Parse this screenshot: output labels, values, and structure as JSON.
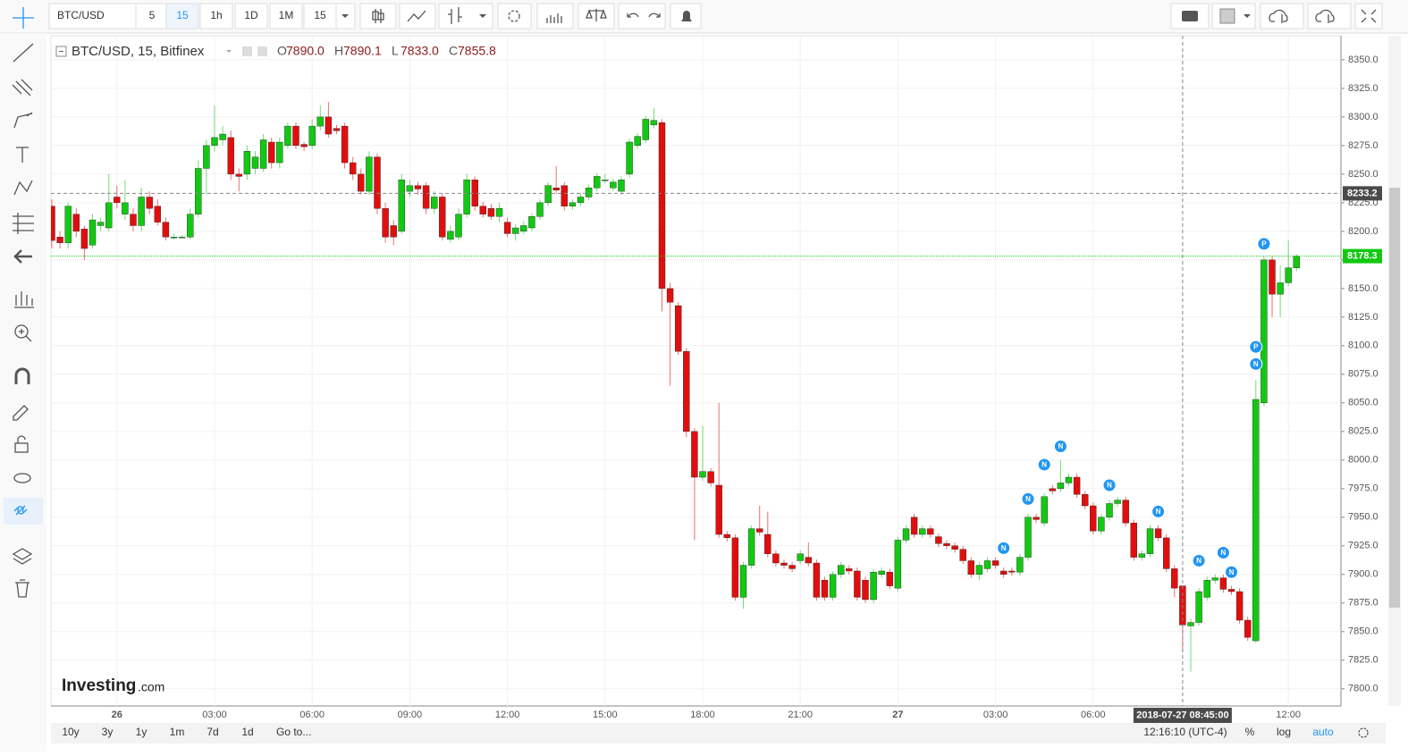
{
  "toolbar": {
    "symbol": "BTC/USD",
    "intervals": [
      "5",
      "15",
      "1h",
      "1D",
      "1M",
      "15"
    ]
  },
  "legend": {
    "title": "BTC/USD, 15, Bitfinex",
    "ohlc": [
      {
        "label": "O",
        "value": "7890.0"
      },
      {
        "label": "H",
        "value": "7890.1"
      },
      {
        "label": "L",
        "value": "7833.0"
      },
      {
        "label": "C",
        "value": "7855.8"
      }
    ]
  },
  "chart_data": {
    "type": "candlestick",
    "up_color": "#12c912",
    "down_color": "#e20e0e",
    "categories": [
      null,
      null,
      null,
      null,
      null,
      null,
      null,
      null,
      "26",
      null,
      null,
      null,
      null,
      null,
      null,
      null,
      null,
      null,
      null,
      null,
      "03:00",
      null,
      null,
      null,
      null,
      null,
      null,
      null,
      null,
      null,
      null,
      null,
      "06:00",
      null,
      null,
      null,
      null,
      null,
      null,
      null,
      null,
      null,
      null,
      null,
      "09:00",
      null,
      null,
      null,
      null,
      null,
      null,
      null,
      null,
      null,
      null,
      null,
      "12:00",
      null,
      null,
      null,
      null,
      null,
      null,
      null,
      null,
      null,
      null,
      null,
      "15:00",
      null,
      null,
      null,
      null,
      null,
      null,
      null,
      null,
      null,
      null,
      null,
      "18:00",
      null,
      null,
      null,
      null,
      null,
      null,
      null,
      null,
      null,
      null,
      null,
      "21:00",
      null,
      null,
      null,
      null,
      null,
      null,
      null,
      null,
      null,
      null,
      null,
      "27",
      null,
      null,
      null,
      null,
      null,
      null,
      null,
      null,
      null,
      null,
      null,
      "03:00",
      null,
      null,
      null,
      null,
      null,
      null,
      null,
      null,
      null,
      null,
      null,
      "06:00",
      null,
      null,
      null,
      null,
      null,
      null,
      null,
      null,
      null,
      null,
      null,
      null,
      null,
      null,
      null,
      null,
      null,
      null,
      null,
      null,
      null,
      null,
      null,
      "12:00",
      null
    ],
    "open": [
      8222,
      8195,
      8190,
      8215,
      8202,
      8188,
      8205,
      8203,
      8230,
      8215,
      8215,
      8205,
      8230,
      8222,
      8208,
      8195,
      8195,
      8195,
      8215,
      8255,
      8275,
      8280,
      8282,
      8250,
      8250,
      8255,
      8255,
      8278,
      8260,
      8275,
      8292,
      8276,
      8275,
      8292,
      8300,
      8290,
      8292,
      8260,
      8250,
      8235,
      8265,
      8220,
      8205,
      8200,
      8235,
      8240,
      8240,
      8220,
      8230,
      8193,
      8195,
      8215,
      8245,
      8222,
      8220,
      8213,
      8208,
      8198,
      8200,
      8203,
      8213,
      8225,
      8238,
      8240,
      8222,
      8225,
      8230,
      8238,
      8245,
      8238,
      8235,
      8250,
      8275,
      8280,
      8293,
      8295,
      8150,
      8135,
      8095,
      8025,
      7985,
      7990,
      7978,
      7935,
      7932,
      7880,
      7908,
      7940,
      7935,
      7918,
      7910,
      7908,
      7912,
      7915,
      7910,
      7895,
      7880,
      7900,
      7905,
      7903,
      7895,
      7878,
      7900,
      7902,
      7888,
      7930,
      7950,
      7935,
      7940,
      7933,
      7927,
      7925,
      7922,
      7912,
      7900,
      7905,
      7912,
      7903,
      7903,
      7902,
      7915,
      7950,
      7945,
      7975,
      7975,
      7980,
      7985,
      7970,
      7960,
      7938,
      7950,
      7962,
      7965,
      7945,
      7915,
      7918,
      7940,
      7932,
      7905,
      7890,
      7855,
      7858,
      7880,
      7895,
      7897,
      7887,
      7885,
      7860,
      7842,
      8050,
      8175,
      8145,
      8155,
      8168
    ],
    "high": [
      8228,
      8200,
      8225,
      8220,
      8205,
      8215,
      8212,
      8250,
      8240,
      8245,
      8220,
      8238,
      8235,
      8228,
      8212,
      8198,
      8197,
      8220,
      8262,
      8280,
      8310,
      8292,
      8288,
      8255,
      8275,
      8270,
      8285,
      8282,
      8282,
      8295,
      8295,
      8278,
      8298,
      8310,
      8313,
      8293,
      8295,
      8265,
      8255,
      8270,
      8268,
      8225,
      8210,
      8250,
      8245,
      8243,
      8243,
      8235,
      8233,
      8205,
      8220,
      8250,
      8248,
      8226,
      8224,
      8225,
      8212,
      8206,
      8209,
      8216,
      8228,
      8243,
      8257,
      8243,
      8228,
      8233,
      8241,
      8251,
      8250,
      8246,
      8248,
      8281,
      8286,
      8301,
      8308,
      8298,
      8155,
      8138,
      8098,
      8028,
      8030,
      7993,
      8050,
      7938,
      7935,
      7911,
      7943,
      7960,
      7955,
      7921,
      7913,
      7911,
      7921,
      7928,
      7913,
      7898,
      7903,
      7911,
      7908,
      7906,
      7898,
      7905,
      7906,
      7905,
      7933,
      7943,
      7953,
      7943,
      7943,
      7936,
      7930,
      7928,
      7925,
      7915,
      7911,
      7915,
      7915,
      7906,
      7906,
      7918,
      7953,
      7953,
      7971,
      7978,
      8000,
      7988,
      7988,
      7973,
      7963,
      7953,
      7965,
      7968,
      7968,
      7948,
      7921,
      7943,
      7943,
      7935,
      7908,
      7890.1,
      7861,
      7888,
      7898,
      7900,
      7900,
      7890,
      7888,
      7863,
      8070,
      8178,
      8178,
      8170,
      8192,
      8180
    ],
    "low": [
      8185,
      8185,
      8185,
      8195,
      8175,
      8185,
      8200,
      8200,
      8220,
      8210,
      8200,
      8200,
      8215,
      8205,
      8192,
      8193,
      8194,
      8193,
      8212,
      8232,
      8270,
      8275,
      8245,
      8235,
      8245,
      8250,
      8252,
      8255,
      8255,
      8272,
      8272,
      8270,
      8272,
      8288,
      8282,
      8285,
      8255,
      8245,
      8232,
      8232,
      8215,
      8190,
      8188,
      8198,
      8230,
      8232,
      8215,
      8215,
      8192,
      8190,
      8192,
      8212,
      8218,
      8212,
      8210,
      8208,
      8195,
      8192,
      8197,
      8200,
      8210,
      8222,
      8233,
      8218,
      8219,
      8222,
      8227,
      8235,
      8242,
      8235,
      8232,
      8247,
      8272,
      8277,
      8290,
      8130,
      8065,
      8092,
      8020,
      7930,
      7982,
      7977,
      7932,
      7929,
      7877,
      7870,
      7905,
      7934,
      7915,
      7907,
      7905,
      7902,
      7909,
      7907,
      7877,
      7877,
      7877,
      7897,
      7900,
      7877,
      7875,
      7875,
      7897,
      7887,
      7885,
      7927,
      7932,
      7932,
      7932,
      7924,
      7922,
      7919,
      7909,
      7897,
      7895,
      7902,
      7905,
      7897,
      7899,
      7899,
      7912,
      7945,
      7942,
      7970,
      7972,
      7977,
      7967,
      7957,
      7935,
      7935,
      7947,
      7959,
      7942,
      7912,
      7912,
      7915,
      7929,
      7902,
      7880,
      7833,
      7815,
      7855,
      7877,
      7892,
      7884,
      7882,
      7857,
      7842,
      7840,
      8047,
      8125,
      8125,
      8152,
      8165
    ],
    "close": [
      8192,
      8190,
      8222,
      8200,
      8185,
      8210,
      8208,
      8225,
      8225,
      8225,
      8205,
      8230,
      8220,
      8208,
      8195,
      8195,
      8195,
      8215,
      8255,
      8275,
      8282,
      8285,
      8250,
      8248,
      8270,
      8265,
      8280,
      8260,
      8278,
      8292,
      8275,
      8274,
      8292,
      8300,
      8285,
      8288,
      8260,
      8250,
      8235,
      8265,
      8220,
      8195,
      8195,
      8245,
      8240,
      8237,
      8220,
      8230,
      8195,
      8200,
      8215,
      8245,
      8222,
      8215,
      8213,
      8220,
      8198,
      8203,
      8205,
      8213,
      8225,
      8240,
      8236,
      8222,
      8225,
      8230,
      8238,
      8248,
      8245,
      8243,
      8245,
      8278,
      8283,
      8298,
      8297,
      8150,
      8138,
      8095,
      8025,
      7985,
      7990,
      7980,
      7935,
      7932,
      7880,
      7908,
      7940,
      7937,
      7918,
      7910,
      7908,
      7905,
      7918,
      7910,
      7880,
      7880,
      7900,
      7908,
      7903,
      7880,
      7878,
      7902,
      7903,
      7890,
      7930,
      7940,
      7935,
      7940,
      7935,
      7927,
      7925,
      7922,
      7912,
      7900,
      7908,
      7912,
      7908,
      7900,
      7902,
      7915,
      7950,
      7948,
      7968,
      7973,
      7980,
      7985,
      7970,
      7960,
      7938,
      7950,
      7962,
      7965,
      7945,
      7915,
      7918,
      7940,
      7932,
      7905,
      7888,
      7855.8,
      7858,
      7885,
      7895,
      7897,
      7887,
      7885,
      7860,
      7845,
      8053,
      8175,
      8145,
      8155,
      8168,
      8178.3
    ],
    "ylim": [
      7785,
      8371
    ],
    "yticks": [
      {
        "value": 7800,
        "label": "7800.0"
      },
      {
        "value": 7825,
        "label": "7825.0"
      },
      {
        "value": 7850,
        "label": "7850.0"
      },
      {
        "value": 7875,
        "label": "7875.0"
      },
      {
        "value": 7900,
        "label": "7900.0"
      },
      {
        "value": 7925,
        "label": "7925.0"
      },
      {
        "value": 7950,
        "label": "7950.0"
      },
      {
        "value": 7975,
        "label": "7975.0"
      },
      {
        "value": 8000,
        "label": "8000.0"
      },
      {
        "value": 8025,
        "label": "8025.0"
      },
      {
        "value": 8050,
        "label": "8050.0"
      },
      {
        "value": 8075,
        "label": "8075.0"
      },
      {
        "value": 8100,
        "label": "8100.0"
      },
      {
        "value": 8125,
        "label": "8125.0"
      },
      {
        "value": 8150,
        "label": "8150.0"
      },
      {
        "value": 8175,
        "label": "8175.0"
      },
      {
        "value": 8200,
        "label": "8200.0"
      },
      {
        "value": 8225,
        "label": "8225.0"
      },
      {
        "value": 8250,
        "label": "8250.0"
      },
      {
        "value": 8275,
        "label": "8275.0"
      },
      {
        "value": 8300,
        "label": "8300.0"
      },
      {
        "value": 8325,
        "label": "8325.0"
      },
      {
        "value": 8350,
        "label": "8350.0"
      }
    ],
    "grid": true,
    "crosshair": {
      "index": 139,
      "x_label": "2018-07-27 08:45:00",
      "y_value": 8233.2
    },
    "markers": [
      {
        "index": 117,
        "value": 7923,
        "label": "N"
      },
      {
        "index": 120,
        "value": 7966,
        "label": "N"
      },
      {
        "index": 122,
        "value": 7996,
        "label": "N"
      },
      {
        "index": 124,
        "value": 8012,
        "label": "N"
      },
      {
        "index": 130,
        "value": 7978,
        "label": "N"
      },
      {
        "index": 136,
        "value": 7955,
        "label": "N"
      },
      {
        "index": 141,
        "value": 7912,
        "label": "N"
      },
      {
        "index": 144,
        "value": 7919,
        "label": "N"
      },
      {
        "index": 145,
        "value": 7902,
        "label": "N"
      },
      {
        "index": 148,
        "value": 8084,
        "label": "N"
      },
      {
        "index": 148,
        "value": 8099,
        "label": "P"
      },
      {
        "index": 149,
        "value": 8189,
        "label": "P"
      }
    ]
  },
  "logo": {
    "brand": "Investing",
    "suffix": ".com"
  },
  "bottom_bar": {
    "ranges": [
      "10y",
      "3y",
      "1y",
      "1m",
      "7d",
      "1d"
    ],
    "goto": "Go to...",
    "clock": "12:16:10 (UTC-4)",
    "percent": "%",
    "log": "log",
    "auto": "auto"
  }
}
